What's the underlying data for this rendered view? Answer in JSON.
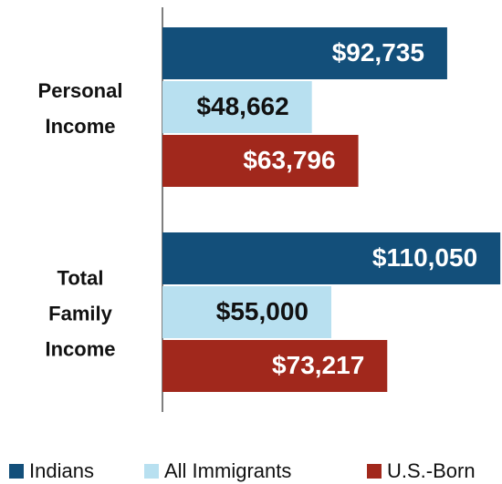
{
  "chart_data": {
    "type": "bar",
    "orientation": "horizontal",
    "categories": [
      "Personal Income",
      "Total Family Income"
    ],
    "series": [
      {
        "name": "Indians",
        "color": "#134f7a",
        "values": [
          92735,
          110050
        ],
        "value_labels": [
          "$92,735",
          "$110,050"
        ]
      },
      {
        "name": "All Immigrants",
        "color": "#b8e0f0",
        "values": [
          48662,
          55000
        ],
        "value_labels": [
          "$48,662",
          "$55,000"
        ]
      },
      {
        "name": "U.S.-Born",
        "color": "#a1281c",
        "values": [
          63796,
          73217
        ],
        "value_labels": [
          "$63,796",
          "$73,217"
        ]
      }
    ],
    "xlim": [
      0,
      110000
    ],
    "legend": "bottom"
  }
}
